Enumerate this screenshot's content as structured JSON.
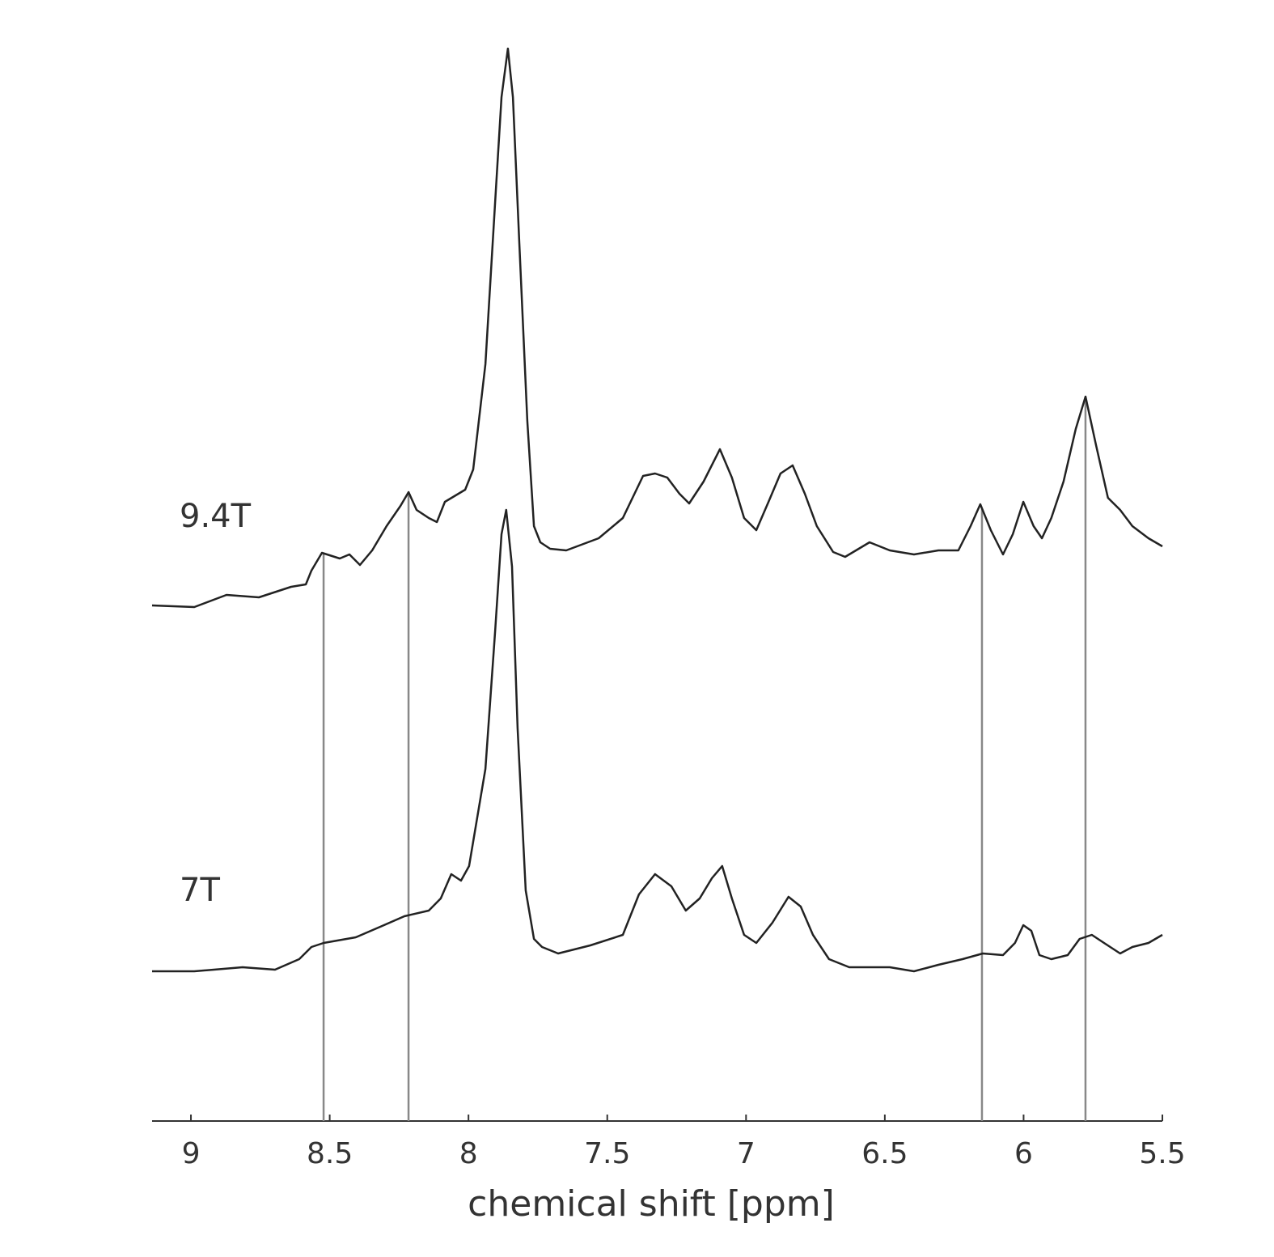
{
  "chart_data": {
    "type": "line",
    "xlabel": "chemical shift [ppm]",
    "xlim": [
      9.14,
      5.5
    ],
    "xticks": [
      9,
      8.5,
      8,
      7.5,
      7,
      6.5,
      6,
      5.5
    ],
    "ylim": [
      0,
      1340
    ],
    "markers": [
      8.522,
      8.216,
      6.15,
      5.777
    ],
    "marker_color": "#888888",
    "series": [
      {
        "name": "9.4T",
        "color": "#222222",
        "x": [
          9.14,
          8.988,
          8.872,
          8.755,
          8.639,
          8.586,
          8.566,
          8.528,
          8.464,
          8.429,
          8.391,
          8.347,
          8.295,
          8.245,
          8.216,
          8.187,
          8.143,
          8.114,
          8.085,
          8.012,
          7.983,
          7.939,
          7.904,
          7.881,
          7.858,
          7.84,
          7.817,
          7.788,
          7.764,
          7.741,
          7.706,
          7.648,
          7.531,
          7.444,
          7.371,
          7.328,
          7.284,
          7.24,
          7.205,
          7.153,
          7.094,
          7.051,
          7.007,
          6.963,
          6.919,
          6.876,
          6.832,
          6.788,
          6.745,
          6.686,
          6.643,
          6.555,
          6.482,
          6.395,
          6.307,
          6.235,
          6.191,
          6.156,
          6.118,
          6.074,
          6.039,
          6.001,
          5.964,
          5.934,
          5.9,
          5.856,
          5.812,
          5.777,
          5.739,
          5.696,
          5.652,
          5.608,
          5.55,
          5.5
        ],
        "values": [
          637,
          635,
          650,
          647,
          660,
          663,
          680,
          702,
          695,
          700,
          687,
          705,
          735,
          760,
          777,
          755,
          745,
          740,
          765,
          780,
          805,
          935,
          1135,
          1265,
          1325,
          1265,
          1085,
          865,
          735,
          715,
          707,
          705,
          720,
          745,
          797,
          800,
          795,
          775,
          763,
          790,
          830,
          795,
          745,
          730,
          765,
          800,
          810,
          775,
          735,
          703,
          697,
          715,
          705,
          700,
          705,
          705,
          735,
          762,
          730,
          700,
          725,
          765,
          735,
          720,
          745,
          790,
          855,
          895,
          835,
          770,
          755,
          735,
          720,
          710
        ]
      },
      {
        "name": "7T",
        "color": "#222222",
        "x": [
          9.14,
          8.988,
          8.814,
          8.697,
          8.61,
          8.566,
          8.522,
          8.406,
          8.318,
          8.231,
          8.143,
          8.1,
          8.062,
          8.027,
          7.998,
          7.939,
          7.904,
          7.881,
          7.864,
          7.843,
          7.823,
          7.794,
          7.764,
          7.735,
          7.677,
          7.561,
          7.444,
          7.386,
          7.328,
          7.269,
          7.217,
          7.167,
          7.123,
          7.086,
          7.051,
          7.007,
          6.963,
          6.905,
          6.847,
          6.803,
          6.759,
          6.701,
          6.628,
          6.482,
          6.395,
          6.307,
          6.22,
          6.147,
          6.074,
          6.031,
          6.001,
          5.972,
          5.943,
          5.9,
          5.841,
          5.798,
          5.754,
          5.71,
          5.652,
          5.608,
          5.55,
          5.5
        ],
        "values": [
          185,
          185,
          190,
          187,
          200,
          215,
          220,
          227,
          240,
          253,
          260,
          275,
          305,
          297,
          315,
          435,
          605,
          725,
          755,
          685,
          485,
          285,
          225,
          215,
          207,
          217,
          230,
          280,
          305,
          290,
          260,
          275,
          300,
          315,
          275,
          230,
          220,
          245,
          277,
          265,
          230,
          200,
          190,
          190,
          185,
          193,
          200,
          207,
          205,
          220,
          242,
          235,
          205,
          200,
          205,
          225,
          230,
          220,
          207,
          215,
          220,
          230
        ]
      }
    ]
  }
}
